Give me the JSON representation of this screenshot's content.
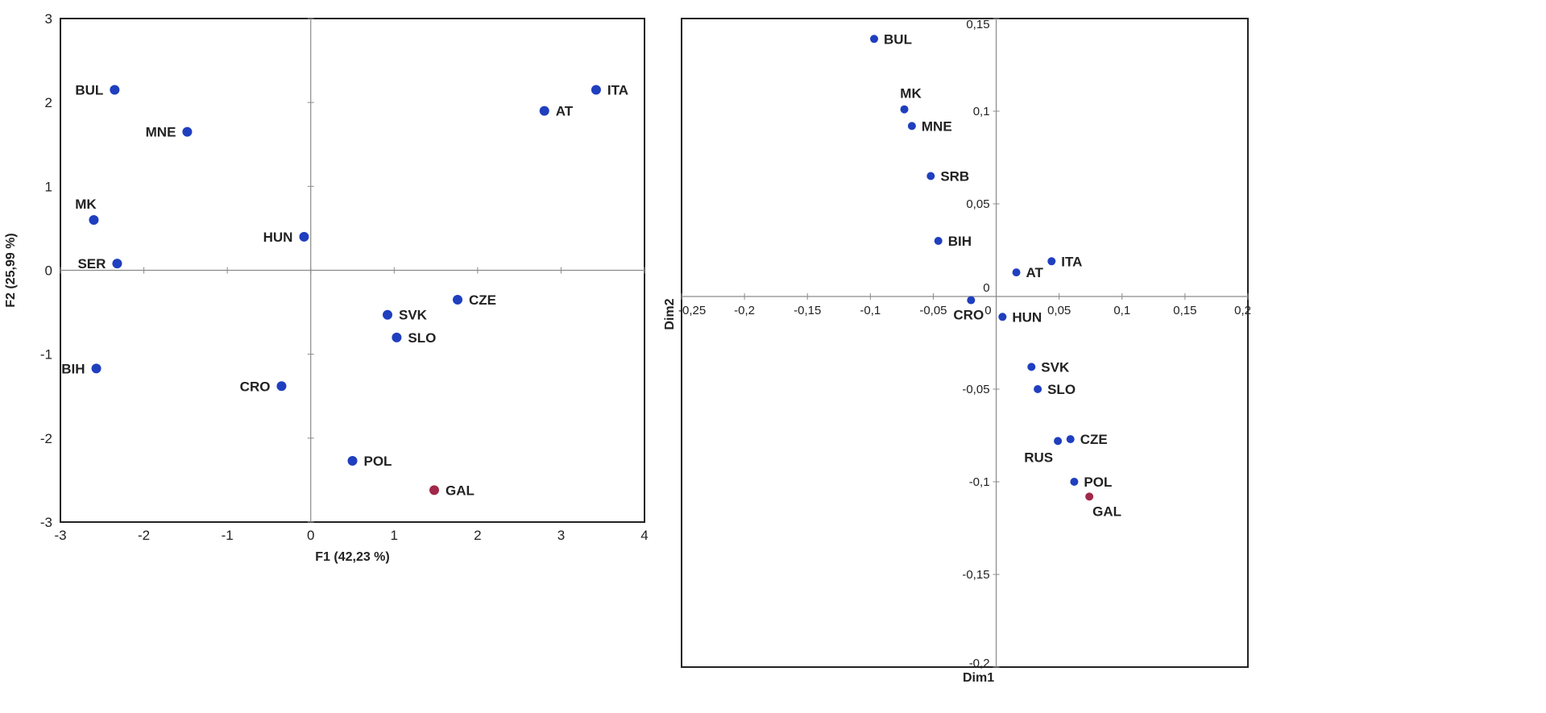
{
  "chart_data": [
    {
      "type": "scatter",
      "xlabel": "F1 (42,23 %)",
      "ylabel": "F2 (25,99 %)",
      "xlim": [
        -3,
        4
      ],
      "ylim": [
        -3,
        3
      ],
      "xticks": [
        "-3",
        "-2",
        "-1",
        "0",
        "1",
        "2",
        "3",
        "4"
      ],
      "yticks": [
        "3",
        "2",
        "1",
        "0",
        "-1",
        "-2",
        "-3"
      ],
      "xtick_values": [
        -3,
        -2,
        -1,
        0,
        1,
        2,
        3,
        4
      ],
      "ytick_values": [
        3,
        2,
        1,
        0,
        -1,
        -2,
        -3
      ],
      "grid": false,
      "point_color": "#1f3fbf",
      "highlight_color": "#a0284a",
      "points": [
        {
          "label": "BUL",
          "x": -2.35,
          "y": 2.15,
          "side": "left"
        },
        {
          "label": "MNE",
          "x": -1.48,
          "y": 1.65,
          "side": "left"
        },
        {
          "label": "MK",
          "x": -2.6,
          "y": 0.6,
          "side": "above"
        },
        {
          "label": "SER",
          "x": -2.32,
          "y": 0.08,
          "side": "left"
        },
        {
          "label": "BIH",
          "x": -2.57,
          "y": -1.17,
          "side": "left"
        },
        {
          "label": "HUN",
          "x": -0.08,
          "y": 0.4,
          "side": "left"
        },
        {
          "label": "CRO",
          "x": -0.35,
          "y": -1.38,
          "side": "left"
        },
        {
          "label": "ITA",
          "x": 3.42,
          "y": 2.15,
          "side": "right"
        },
        {
          "label": "AT",
          "x": 2.8,
          "y": 1.9,
          "side": "right"
        },
        {
          "label": "CZE",
          "x": 1.76,
          "y": -0.35,
          "side": "right"
        },
        {
          "label": "SVK",
          "x": 0.92,
          "y": -0.53,
          "side": "right"
        },
        {
          "label": "SLO",
          "x": 1.03,
          "y": -0.8,
          "side": "right"
        },
        {
          "label": "POL",
          "x": 0.5,
          "y": -2.27,
          "side": "right"
        },
        {
          "label": "GAL",
          "x": 1.48,
          "y": -2.62,
          "side": "right",
          "highlight": true
        }
      ]
    },
    {
      "type": "scatter",
      "xlabel": "Dim1",
      "ylabel": "Dim2",
      "xlim": [
        -0.25,
        0.2
      ],
      "ylim": [
        -0.2,
        0.15
      ],
      "xticks": [
        "-0,25",
        "-0,2",
        "-0,15",
        "-0,1",
        "-0,05",
        "0",
        "0,05",
        "0,1",
        "0,15",
        "0,2"
      ],
      "yticks": [
        "0,15",
        "0,1",
        "0,05",
        "0",
        "-0,05",
        "-0,1",
        "-0,15",
        "-0,2"
      ],
      "xtick_values": [
        -0.25,
        -0.2,
        -0.15,
        -0.1,
        -0.05,
        0,
        0.05,
        0.1,
        0.15,
        0.2
      ],
      "ytick_values": [
        0.15,
        0.1,
        0.05,
        0,
        -0.05,
        -0.1,
        -0.15,
        -0.2
      ],
      "grid": false,
      "point_color": "#1f3fbf",
      "highlight_color": "#a0284a",
      "points": [
        {
          "label": "BUL",
          "x": -0.097,
          "y": 0.139,
          "side": "right"
        },
        {
          "label": "MK",
          "x": -0.073,
          "y": 0.101,
          "side": "above"
        },
        {
          "label": "MNE",
          "x": -0.067,
          "y": 0.092,
          "side": "right"
        },
        {
          "label": "SRB",
          "x": -0.052,
          "y": 0.065,
          "side": "right"
        },
        {
          "label": "BIH",
          "x": -0.046,
          "y": 0.03,
          "side": "right"
        },
        {
          "label": "CRO",
          "x": -0.02,
          "y": -0.002,
          "side": "below"
        },
        {
          "label": "HUN",
          "x": 0.005,
          "y": -0.011,
          "side": "right"
        },
        {
          "label": "AT",
          "x": 0.016,
          "y": 0.013,
          "side": "right"
        },
        {
          "label": "ITA",
          "x": 0.044,
          "y": 0.019,
          "side": "right"
        },
        {
          "label": "SVK",
          "x": 0.028,
          "y": -0.038,
          "side": "right"
        },
        {
          "label": "SLO",
          "x": 0.033,
          "y": -0.05,
          "side": "right"
        },
        {
          "label": "CZE",
          "x": 0.059,
          "y": -0.077,
          "side": "right"
        },
        {
          "label": "RUS",
          "x": 0.049,
          "y": -0.078,
          "side": "below-left"
        },
        {
          "label": "POL",
          "x": 0.062,
          "y": -0.1,
          "side": "right"
        },
        {
          "label": "GAL",
          "x": 0.074,
          "y": -0.108,
          "side": "below-right",
          "highlight": true
        }
      ]
    }
  ]
}
